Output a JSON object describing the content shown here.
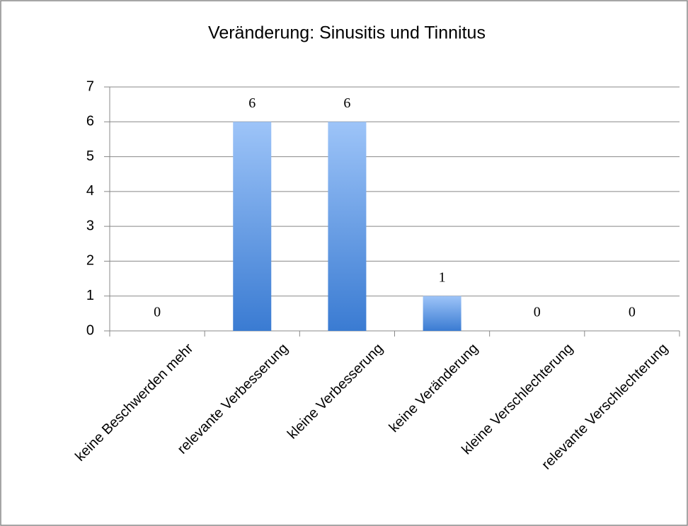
{
  "chart_data": {
    "type": "bar",
    "title": "Veränderung: Sinusitis und Tinnitus",
    "categories": [
      "keine Beschwerden mehr",
      "relevante Verbesserung",
      "kleine Verbesserung",
      "keine Veränderung",
      "kleine Verschlechterung",
      "relevante Verschlechterung"
    ],
    "values": [
      0,
      6,
      6,
      1,
      0,
      0
    ],
    "color": "#4a86d8",
    "ylim": [
      0,
      7
    ],
    "yticks": [
      0,
      1,
      2,
      3,
      4,
      5,
      6,
      7
    ],
    "grid": true
  }
}
